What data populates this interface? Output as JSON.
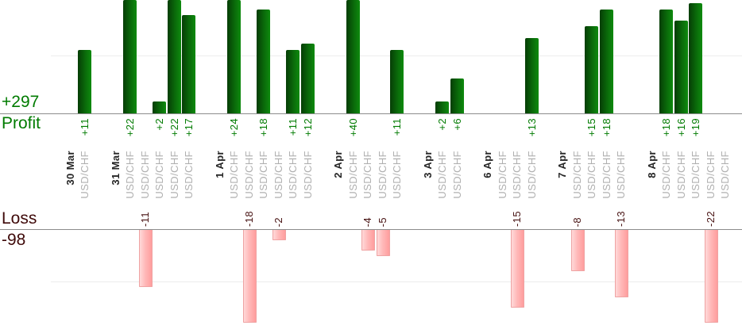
{
  "gutter": {
    "profit_total": "+297",
    "profit_caption": "Profit",
    "loss_caption": "Loss",
    "loss_total": "-98"
  },
  "colors": {
    "profit_text": "#007b00",
    "profit_bar_dark": "#063d06",
    "profit_bar_light": "#0e8a0e",
    "loss_text": "#3f0a0a",
    "loss_value_text": "#471212",
    "loss_bar_light": "#ffd9d9",
    "loss_bar_dark": "#ff9d9d",
    "loss_bar_border": "#efa3a3",
    "date_text": "#262626",
    "instrument_text": "#b0b0b0",
    "axis_line": "#8c8c8c",
    "gridline": "#ececec"
  },
  "chart_data": {
    "type": "bar",
    "title": "",
    "panels": [
      {
        "name": "Profit",
        "total": 297,
        "total_label": "+297",
        "position": "top"
      },
      {
        "name": "Loss",
        "total": -98,
        "total_label": "-98",
        "position": "bottom"
      }
    ],
    "gridline_values": {
      "profit": 10,
      "loss": -10
    },
    "groups": [
      {
        "date": "30 Mar",
        "trades": [
          {
            "instrument": "USD/CHF",
            "value": 11
          }
        ]
      },
      {
        "date": "31 Mar",
        "trades": [
          {
            "instrument": "USD/CHF",
            "value": 22
          },
          {
            "instrument": "USD/CHF",
            "value": -11
          },
          {
            "instrument": "USD/CHF",
            "value": 2
          },
          {
            "instrument": "USD/CHF",
            "value": 22
          },
          {
            "instrument": "USD/CHF",
            "value": 17
          }
        ]
      },
      {
        "date": "1 Apr",
        "trades": [
          {
            "instrument": "USD/CHF",
            "value": 24
          },
          {
            "instrument": "USD/CHF",
            "value": -18
          },
          {
            "instrument": "USD/CHF",
            "value": 18
          },
          {
            "instrument": "USD/CHF",
            "value": -2
          },
          {
            "instrument": "USD/CHF",
            "value": 11
          },
          {
            "instrument": "USD/CHF",
            "value": 12
          }
        ]
      },
      {
        "date": "2 Apr",
        "trades": [
          {
            "instrument": "USD/CHF",
            "value": 40
          },
          {
            "instrument": "USD/CHF",
            "value": -4
          },
          {
            "instrument": "USD/CHF",
            "value": -5
          },
          {
            "instrument": "USD/CHF",
            "value": 11
          }
        ]
      },
      {
        "date": "3 Apr",
        "trades": [
          {
            "instrument": "USD/CHF",
            "value": 2
          },
          {
            "instrument": "USD/CHF",
            "value": 6
          }
        ]
      },
      {
        "date": "6 Apr",
        "trades": [
          {
            "instrument": "USD/CHF",
            "value": null
          },
          {
            "instrument": "USD/CHF",
            "value": -15
          },
          {
            "instrument": "USD/CHF",
            "value": 13
          }
        ]
      },
      {
        "date": "7 Apr",
        "trades": [
          {
            "instrument": "USD/CHF",
            "value": -8
          },
          {
            "instrument": "USD/CHF",
            "value": 15
          },
          {
            "instrument": "USD/CHF",
            "value": 18
          },
          {
            "instrument": "USD/CHF",
            "value": -13
          }
        ]
      },
      {
        "date": "8 Apr",
        "trades": [
          {
            "instrument": "USD/CHF",
            "value": 18
          },
          {
            "instrument": "USD/CHF",
            "value": 16
          },
          {
            "instrument": "USD/CHF",
            "value": 19
          },
          {
            "instrument": "USD/CHF",
            "value": -22
          },
          {
            "instrument": "USD/CHF",
            "value": null
          }
        ]
      }
    ]
  }
}
